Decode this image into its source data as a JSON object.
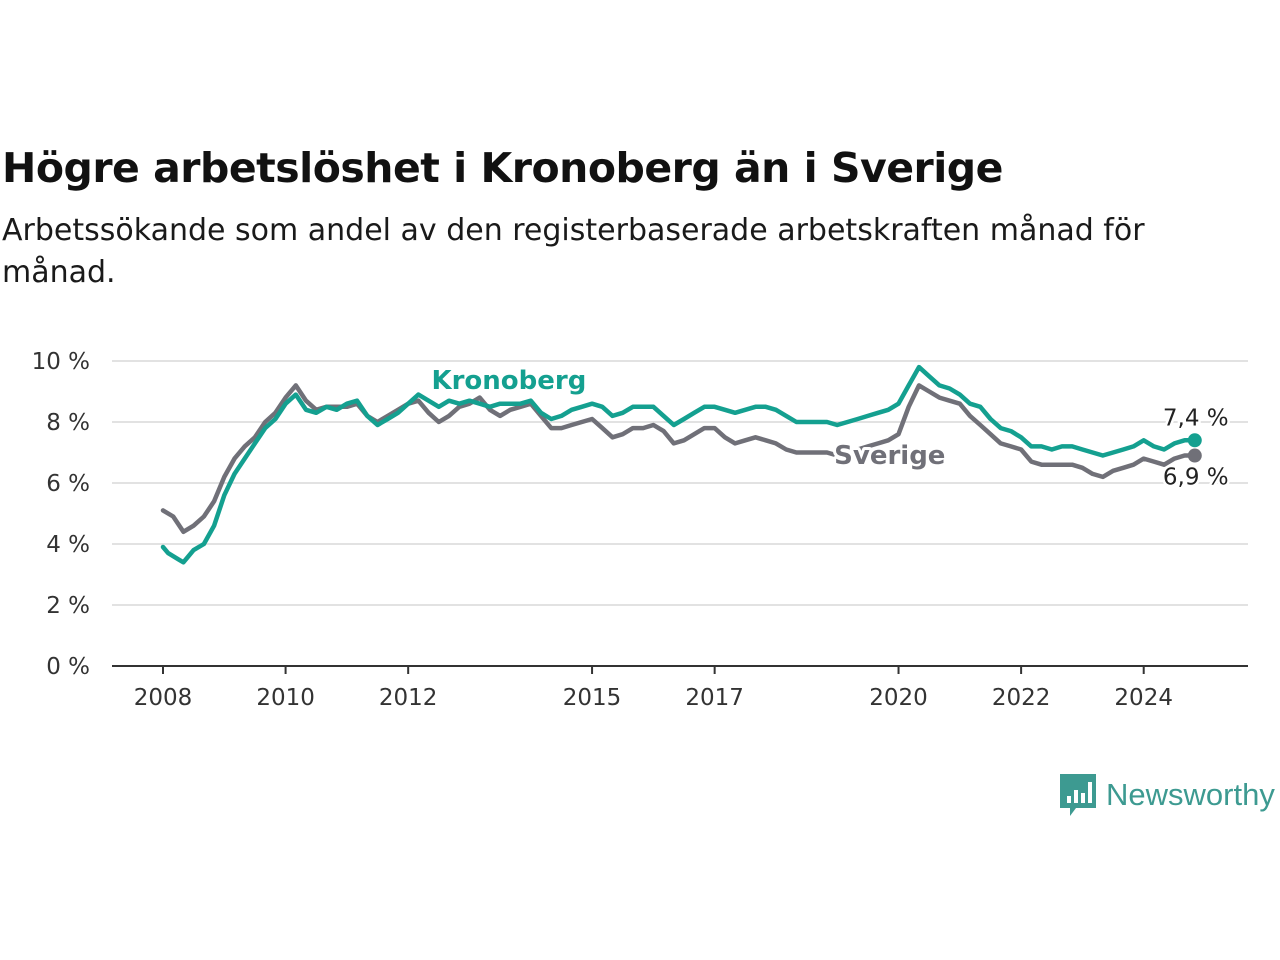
{
  "chart_data": {
    "type": "line",
    "title": "Högre arbetslöshet i Kronoberg än i Sverige",
    "subtitle": "Arbetssökande som andel av den registerbaserade arbetskraften månad för månad.",
    "x_ticks": [
      "2008",
      "2010",
      "2012",
      "2015",
      "2017",
      "2020",
      "2022",
      "2024"
    ],
    "y_ticks": [
      "0 %",
      "2 %",
      "4 %",
      "6 %",
      "8 %",
      "10 %"
    ],
    "ylim": [
      0,
      10
    ],
    "grid": true,
    "series": [
      {
        "name": "Kronoberg",
        "color": "#14a090",
        "end_label": "7,4 %",
        "points": [
          [
            "2008-01",
            3.9
          ],
          [
            "2008-02",
            3.7
          ],
          [
            "2008-03",
            3.6
          ],
          [
            "2008-04",
            3.5
          ],
          [
            "2008-05",
            3.4
          ],
          [
            "2008-07",
            3.8
          ],
          [
            "2008-09",
            4.0
          ],
          [
            "2008-11",
            4.6
          ],
          [
            "2009-01",
            5.6
          ],
          [
            "2009-03",
            6.3
          ],
          [
            "2009-05",
            6.8
          ],
          [
            "2009-07",
            7.3
          ],
          [
            "2009-09",
            7.8
          ],
          [
            "2009-11",
            8.1
          ],
          [
            "2010-01",
            8.6
          ],
          [
            "2010-03",
            8.9
          ],
          [
            "2010-05",
            8.4
          ],
          [
            "2010-07",
            8.3
          ],
          [
            "2010-09",
            8.5
          ],
          [
            "2010-11",
            8.4
          ],
          [
            "2011-01",
            8.6
          ],
          [
            "2011-03",
            8.7
          ],
          [
            "2011-05",
            8.2
          ],
          [
            "2011-07",
            7.9
          ],
          [
            "2011-09",
            8.1
          ],
          [
            "2011-11",
            8.3
          ],
          [
            "2012-01",
            8.6
          ],
          [
            "2012-03",
            8.9
          ],
          [
            "2012-05",
            8.7
          ],
          [
            "2012-07",
            8.5
          ],
          [
            "2012-09",
            8.7
          ],
          [
            "2012-11",
            8.6
          ],
          [
            "2013-01",
            8.7
          ],
          [
            "2013-03",
            8.6
          ],
          [
            "2013-05",
            8.5
          ],
          [
            "2013-07",
            8.6
          ],
          [
            "2013-09",
            8.6
          ],
          [
            "2013-11",
            8.6
          ],
          [
            "2014-01",
            8.7
          ],
          [
            "2014-03",
            8.3
          ],
          [
            "2014-05",
            8.1
          ],
          [
            "2014-07",
            8.2
          ],
          [
            "2014-09",
            8.4
          ],
          [
            "2014-11",
            8.5
          ],
          [
            "2015-01",
            8.6
          ],
          [
            "2015-03",
            8.5
          ],
          [
            "2015-05",
            8.2
          ],
          [
            "2015-07",
            8.3
          ],
          [
            "2015-09",
            8.5
          ],
          [
            "2015-11",
            8.5
          ],
          [
            "2016-01",
            8.5
          ],
          [
            "2016-03",
            8.2
          ],
          [
            "2016-05",
            7.9
          ],
          [
            "2016-07",
            8.1
          ],
          [
            "2016-09",
            8.3
          ],
          [
            "2016-11",
            8.5
          ],
          [
            "2017-01",
            8.5
          ],
          [
            "2017-03",
            8.4
          ],
          [
            "2017-05",
            8.3
          ],
          [
            "2017-07",
            8.4
          ],
          [
            "2017-09",
            8.5
          ],
          [
            "2017-11",
            8.5
          ],
          [
            "2018-01",
            8.4
          ],
          [
            "2018-03",
            8.2
          ],
          [
            "2018-05",
            8.0
          ],
          [
            "2018-07",
            8.0
          ],
          [
            "2018-09",
            8.0
          ],
          [
            "2018-11",
            8.0
          ],
          [
            "2019-01",
            7.9
          ],
          [
            "2019-03",
            8.0
          ],
          [
            "2019-05",
            8.1
          ],
          [
            "2019-07",
            8.2
          ],
          [
            "2019-09",
            8.3
          ],
          [
            "2019-11",
            8.4
          ],
          [
            "2020-01",
            8.6
          ],
          [
            "2020-03",
            9.2
          ],
          [
            "2020-05",
            9.8
          ],
          [
            "2020-07",
            9.5
          ],
          [
            "2020-09",
            9.2
          ],
          [
            "2020-11",
            9.1
          ],
          [
            "2021-01",
            8.9
          ],
          [
            "2021-03",
            8.6
          ],
          [
            "2021-05",
            8.5
          ],
          [
            "2021-07",
            8.1
          ],
          [
            "2021-09",
            7.8
          ],
          [
            "2021-11",
            7.7
          ],
          [
            "2022-01",
            7.5
          ],
          [
            "2022-03",
            7.2
          ],
          [
            "2022-05",
            7.2
          ],
          [
            "2022-07",
            7.1
          ],
          [
            "2022-09",
            7.2
          ],
          [
            "2022-11",
            7.2
          ],
          [
            "2023-01",
            7.1
          ],
          [
            "2023-03",
            7.0
          ],
          [
            "2023-05",
            6.9
          ],
          [
            "2023-07",
            7.0
          ],
          [
            "2023-09",
            7.1
          ],
          [
            "2023-11",
            7.2
          ],
          [
            "2024-01",
            7.4
          ],
          [
            "2024-03",
            7.2
          ],
          [
            "2024-05",
            7.1
          ],
          [
            "2024-07",
            7.3
          ],
          [
            "2024-09",
            7.4
          ],
          [
            "2024-11",
            7.4
          ]
        ]
      },
      {
        "name": "Sverige",
        "color": "#707078",
        "end_label": "6,9 %",
        "points": [
          [
            "2008-01",
            5.1
          ],
          [
            "2008-03",
            4.9
          ],
          [
            "2008-05",
            4.4
          ],
          [
            "2008-07",
            4.6
          ],
          [
            "2008-09",
            4.9
          ],
          [
            "2008-11",
            5.4
          ],
          [
            "2009-01",
            6.2
          ],
          [
            "2009-03",
            6.8
          ],
          [
            "2009-05",
            7.2
          ],
          [
            "2009-07",
            7.5
          ],
          [
            "2009-09",
            8.0
          ],
          [
            "2009-11",
            8.3
          ],
          [
            "2010-01",
            8.8
          ],
          [
            "2010-03",
            9.2
          ],
          [
            "2010-05",
            8.7
          ],
          [
            "2010-07",
            8.4
          ],
          [
            "2010-09",
            8.5
          ],
          [
            "2010-11",
            8.5
          ],
          [
            "2011-01",
            8.5
          ],
          [
            "2011-03",
            8.6
          ],
          [
            "2011-05",
            8.2
          ],
          [
            "2011-07",
            8.0
          ],
          [
            "2011-09",
            8.2
          ],
          [
            "2011-11",
            8.4
          ],
          [
            "2012-01",
            8.6
          ],
          [
            "2012-03",
            8.7
          ],
          [
            "2012-05",
            8.3
          ],
          [
            "2012-07",
            8.0
          ],
          [
            "2012-09",
            8.2
          ],
          [
            "2012-11",
            8.5
          ],
          [
            "2013-01",
            8.6
          ],
          [
            "2013-03",
            8.8
          ],
          [
            "2013-05",
            8.4
          ],
          [
            "2013-07",
            8.2
          ],
          [
            "2013-09",
            8.4
          ],
          [
            "2013-11",
            8.5
          ],
          [
            "2014-01",
            8.6
          ],
          [
            "2014-03",
            8.2
          ],
          [
            "2014-05",
            7.8
          ],
          [
            "2014-07",
            7.8
          ],
          [
            "2014-09",
            7.9
          ],
          [
            "2014-11",
            8.0
          ],
          [
            "2015-01",
            8.1
          ],
          [
            "2015-03",
            7.8
          ],
          [
            "2015-05",
            7.5
          ],
          [
            "2015-07",
            7.6
          ],
          [
            "2015-09",
            7.8
          ],
          [
            "2015-11",
            7.8
          ],
          [
            "2016-01",
            7.9
          ],
          [
            "2016-03",
            7.7
          ],
          [
            "2016-05",
            7.3
          ],
          [
            "2016-07",
            7.4
          ],
          [
            "2016-09",
            7.6
          ],
          [
            "2016-11",
            7.8
          ],
          [
            "2017-01",
            7.8
          ],
          [
            "2017-03",
            7.5
          ],
          [
            "2017-05",
            7.3
          ],
          [
            "2017-07",
            7.4
          ],
          [
            "2017-09",
            7.5
          ],
          [
            "2017-11",
            7.4
          ],
          [
            "2018-01",
            7.3
          ],
          [
            "2018-03",
            7.1
          ],
          [
            "2018-05",
            7.0
          ],
          [
            "2018-07",
            7.0
          ],
          [
            "2018-09",
            7.0
          ],
          [
            "2018-11",
            7.0
          ],
          [
            "2019-01",
            6.9
          ],
          [
            "2019-03",
            7.0
          ],
          [
            "2019-05",
            7.1
          ],
          [
            "2019-07",
            7.2
          ],
          [
            "2019-09",
            7.3
          ],
          [
            "2019-11",
            7.4
          ],
          [
            "2020-01",
            7.6
          ],
          [
            "2020-03",
            8.5
          ],
          [
            "2020-05",
            9.2
          ],
          [
            "2020-07",
            9.0
          ],
          [
            "2020-09",
            8.8
          ],
          [
            "2020-11",
            8.7
          ],
          [
            "2021-01",
            8.6
          ],
          [
            "2021-03",
            8.2
          ],
          [
            "2021-05",
            7.9
          ],
          [
            "2021-07",
            7.6
          ],
          [
            "2021-09",
            7.3
          ],
          [
            "2021-11",
            7.2
          ],
          [
            "2022-01",
            7.1
          ],
          [
            "2022-03",
            6.7
          ],
          [
            "2022-05",
            6.6
          ],
          [
            "2022-07",
            6.6
          ],
          [
            "2022-09",
            6.6
          ],
          [
            "2022-11",
            6.6
          ],
          [
            "2023-01",
            6.5
          ],
          [
            "2023-03",
            6.3
          ],
          [
            "2023-05",
            6.2
          ],
          [
            "2023-07",
            6.4
          ],
          [
            "2023-09",
            6.5
          ],
          [
            "2023-11",
            6.6
          ],
          [
            "2024-01",
            6.8
          ],
          [
            "2024-03",
            6.7
          ],
          [
            "2024-05",
            6.6
          ],
          [
            "2024-07",
            6.8
          ],
          [
            "2024-09",
            6.9
          ],
          [
            "2024-11",
            6.9
          ]
        ]
      }
    ]
  },
  "brand": {
    "name": "Newsworthy",
    "icon": "newsworthy-logo-icon",
    "color": "#3d9a91"
  }
}
